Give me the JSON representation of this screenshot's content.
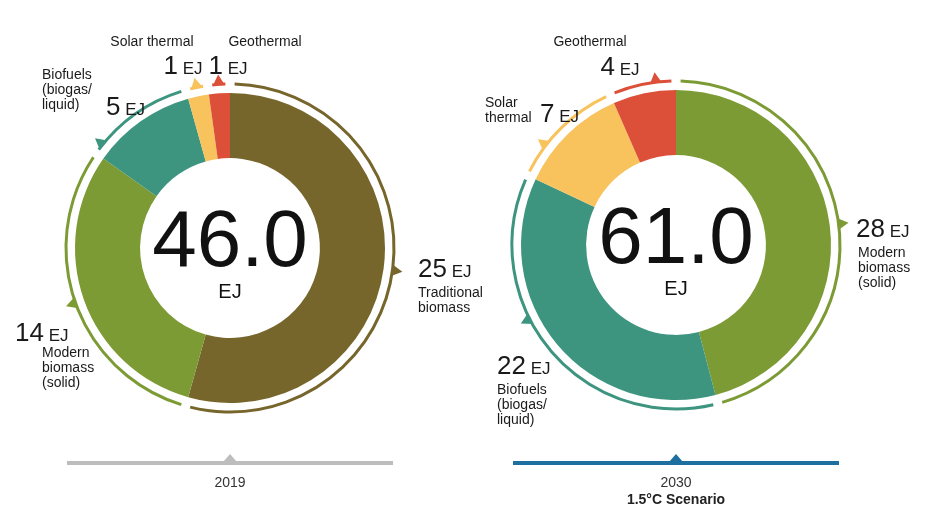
{
  "chart_data": [
    {
      "type": "doughnut",
      "title": "2019",
      "center_text": "46.0",
      "unit": "EJ",
      "categories": [
        "Traditional\nbiomass",
        "Modern\nbiomass\n(solid)",
        "Biofuels\n(biogas/\nliquid)",
        "Solar thermal",
        "Geothermal"
      ],
      "values": [
        25,
        14,
        5,
        1,
        1
      ],
      "value_labels": [
        "25 EJ",
        "14 EJ",
        "5 EJ",
        "1 EJ",
        "1 EJ"
      ],
      "colors": [
        "#77662b",
        "#7d9b35",
        "#3d9580",
        "#f8c25c",
        "#dc4f38"
      ],
      "data_labels": true
    },
    {
      "type": "doughnut",
      "title": "2030",
      "subtitle": "1.5°C Scenario",
      "center_text": "61.0",
      "unit": "EJ",
      "categories": [
        "Modern\nbiomass\n(solid)",
        "Biofuels\n(biogas/\nliquid)",
        "Solar\nthermal",
        "Geothermal"
      ],
      "values": [
        28,
        22,
        7,
        4
      ],
      "value_labels": [
        "28 EJ",
        "22 EJ",
        "7 EJ",
        "4 EJ"
      ],
      "colors": [
        "#7d9b35",
        "#3d9580",
        "#f8c25c",
        "#dc4f38"
      ],
      "data_labels": true
    }
  ]
}
